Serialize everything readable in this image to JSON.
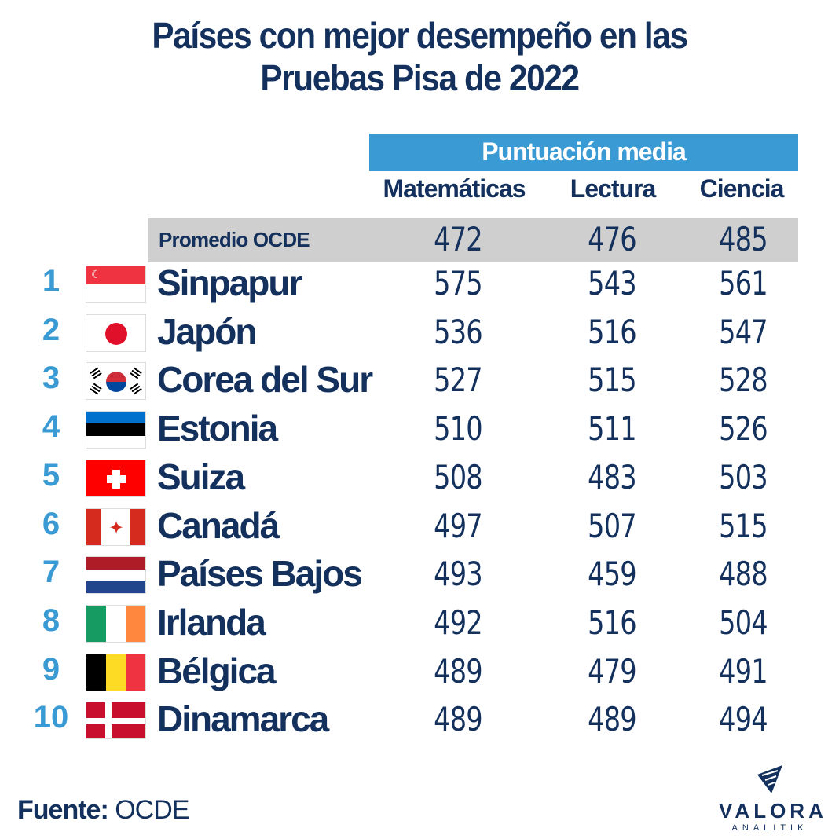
{
  "title_line1": "Países con mejor desempeño en las",
  "title_line2": "Pruebas Pisa de 2022",
  "source_label": "Fuente:",
  "source_value": "OCDE",
  "logo": {
    "name": "VALORA",
    "sub": "ANALITIK"
  },
  "colors": {
    "navy": "#14315e",
    "accent": "#3a9ad3",
    "average_band": "#cfcfcf"
  },
  "chart_data": {
    "type": "table",
    "title": "Países con mejor desempeño en las Pruebas Pisa de 2022",
    "group_header": "Puntuación media",
    "columns": [
      "Matemáticas",
      "Lectura",
      "Ciencia"
    ],
    "average": {
      "label": "Promedio OCDE",
      "values": [
        472,
        476,
        485
      ]
    },
    "rows": [
      {
        "rank": "1",
        "country": "Sinpapur",
        "flag": "singapore",
        "values": [
          575,
          543,
          561
        ]
      },
      {
        "rank": "2",
        "country": "Japón",
        "flag": "japan",
        "values": [
          536,
          516,
          547
        ]
      },
      {
        "rank": "3",
        "country": "Corea del Sur",
        "flag": "south-korea",
        "values": [
          527,
          515,
          528
        ]
      },
      {
        "rank": "4",
        "country": "Estonia",
        "flag": "estonia",
        "values": [
          510,
          511,
          526
        ]
      },
      {
        "rank": "5",
        "country": "Suiza",
        "flag": "switzerland",
        "values": [
          508,
          483,
          503
        ]
      },
      {
        "rank": "6",
        "country": "Canadá",
        "flag": "canada",
        "values": [
          497,
          507,
          515
        ]
      },
      {
        "rank": "7",
        "country": "Países Bajos",
        "flag": "netherlands",
        "values": [
          493,
          459,
          488
        ]
      },
      {
        "rank": "8",
        "country": "Irlanda",
        "flag": "ireland",
        "values": [
          492,
          516,
          504
        ]
      },
      {
        "rank": "9",
        "country": "Bélgica",
        "flag": "belgium",
        "values": [
          489,
          479,
          491
        ]
      },
      {
        "rank": "10",
        "country": "Dinamarca",
        "flag": "denmark",
        "values": [
          489,
          489,
          494
        ]
      }
    ]
  }
}
